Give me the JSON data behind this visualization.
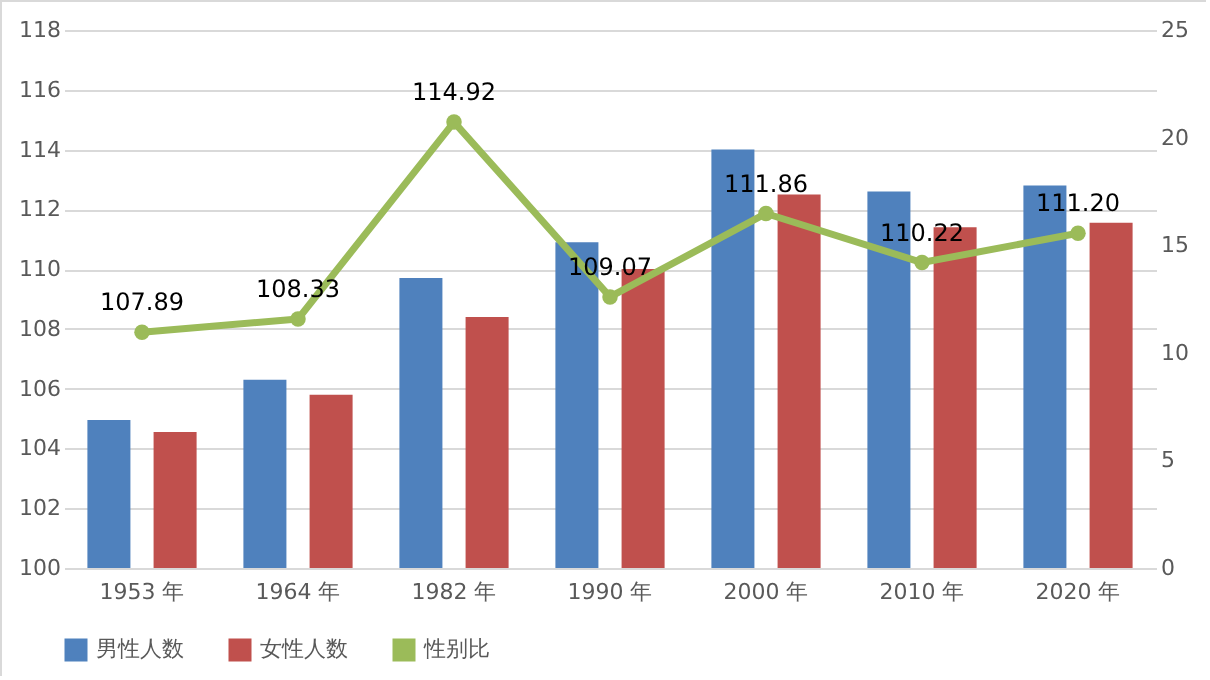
{
  "chart_data": {
    "type": "bar",
    "categories": [
      "1953 年",
      "1964 年",
      "1982 年",
      "1990 年",
      "2000 年",
      "2010 年",
      "2020 年"
    ],
    "series": [
      {
        "name": "男性人数",
        "color": "#4f81bd",
        "values": [
          104.95,
          106.3,
          109.7,
          110.9,
          114.0,
          112.6,
          112.8
        ]
      },
      {
        "name": "女性人数",
        "color": "#c0504d",
        "values": [
          104.55,
          105.8,
          108.4,
          110.0,
          112.5,
          111.4,
          111.55
        ]
      },
      {
        "name": "性别比",
        "type": "line",
        "color": "#9bbb59",
        "marker": "circle",
        "values": [
          107.89,
          108.33,
          114.92,
          109.07,
          111.86,
          110.22,
          111.2
        ],
        "value_labels": [
          "107.89",
          "108.33",
          "114.92",
          "109.07",
          "111.86",
          "110.22",
          "111.20"
        ]
      }
    ],
    "ylim": [
      100,
      118
    ],
    "yticks": [
      100,
      102,
      104,
      106,
      108,
      110,
      112,
      114,
      116,
      118
    ],
    "y2lim": [
      0,
      25
    ],
    "y2ticks": [
      0,
      5,
      10,
      15,
      20,
      25
    ],
    "grid": "y",
    "legend": "bottom"
  }
}
